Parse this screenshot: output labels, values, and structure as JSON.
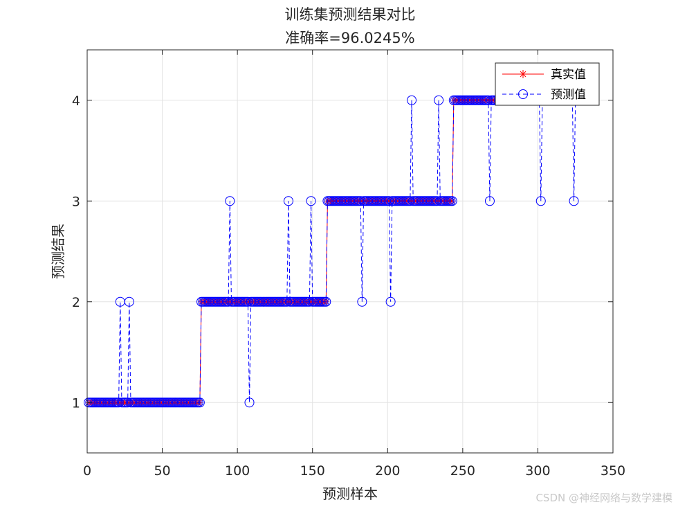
{
  "chart_data": {
    "type": "line",
    "title": "训练集预测结果对比",
    "subtitle": "准确率=96.0245%",
    "xlabel": "预测样本",
    "ylabel": "预测结果",
    "xlim": [
      0,
      350
    ],
    "ylim": [
      0.5,
      4.5
    ],
    "xticks": [
      0,
      50,
      100,
      150,
      200,
      250,
      300,
      350
    ],
    "yticks": [
      1,
      2,
      3,
      4
    ],
    "grid": true,
    "legend_position": "top-right",
    "n_samples": 327,
    "series": [
      {
        "name": "真实值",
        "color": "#ff0000",
        "marker": "asterisk",
        "line": "solid",
        "segments": [
          {
            "from": 1,
            "to": 75,
            "value": 1
          },
          {
            "from": 76,
            "to": 159,
            "value": 2
          },
          {
            "from": 160,
            "to": 243,
            "value": 3
          },
          {
            "from": 244,
            "to": 327,
            "value": 4
          }
        ]
      },
      {
        "name": "预测值",
        "color": "#0000ff",
        "marker": "circle",
        "line": "dashed",
        "mismatches": [
          {
            "x": 22,
            "value": 2
          },
          {
            "x": 28,
            "value": 2
          },
          {
            "x": 95,
            "value": 3
          },
          {
            "x": 108,
            "value": 1
          },
          {
            "x": 134,
            "value": 3
          },
          {
            "x": 149,
            "value": 3
          },
          {
            "x": 183,
            "value": 2
          },
          {
            "x": 202,
            "value": 2
          },
          {
            "x": 216,
            "value": 4
          },
          {
            "x": 234,
            "value": 4
          },
          {
            "x": 268,
            "value": 3
          },
          {
            "x": 302,
            "value": 3
          },
          {
            "x": 324,
            "value": 3
          }
        ]
      }
    ]
  },
  "watermark": "CSDN @神经网络与数学建模"
}
